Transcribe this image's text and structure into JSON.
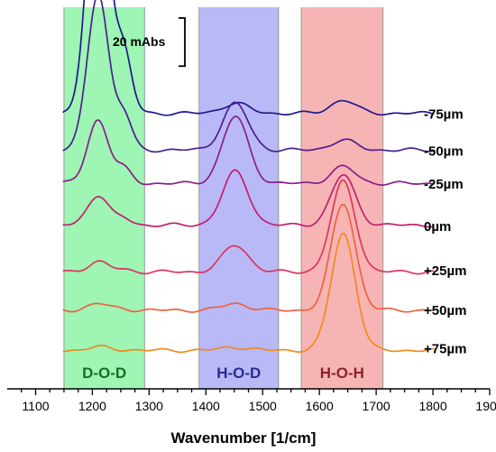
{
  "chart_data": {
    "type": "line",
    "title": "",
    "xlabel": "Wavenumber [1/cm]",
    "ylabel": "",
    "xlim": [
      1050,
      1900
    ],
    "xticks": [
      1100,
      1200,
      1300,
      1400,
      1500,
      1600,
      1700,
      1800,
      1900
    ],
    "grid": false,
    "scale_bar": {
      "label": "20 mAbs",
      "value": 20,
      "unit": "mAbs"
    },
    "bands": [
      {
        "label": "D-O-D",
        "from": 1150,
        "to": 1292,
        "color": "#9ef5b4",
        "text_color": "#1a6b2a"
      },
      {
        "label": "H-O-D",
        "from": 1388,
        "to": 1528,
        "color": "#b9b9f7",
        "text_color": "#2a2a9a"
      },
      {
        "label": "H-O-H",
        "from": 1568,
        "to": 1712,
        "color": "#f7b4b4",
        "text_color": "#8a2424"
      }
    ],
    "series": [
      {
        "name": "-75µm",
        "color": "#1f1a8c",
        "offset": 72,
        "dod": 82,
        "hod": 3,
        "hoh": 4
      },
      {
        "name": "-50µm",
        "color": "#4b1f8f",
        "offset": 61,
        "dod": 47,
        "hod": 14,
        "hoh": 3
      },
      {
        "name": "-25µm",
        "color": "#8a1f8a",
        "offset": 51,
        "dod": 19,
        "hod": 20,
        "hoh": 5
      },
      {
        "name": "0µm",
        "color": "#c02070",
        "offset": 38.5,
        "dod": 9,
        "hod": 16,
        "hoh": 15
      },
      {
        "name": "+25µm",
        "color": "#de3560",
        "offset": 24.5,
        "dod": 3,
        "hod": 8,
        "hoh": 27
      },
      {
        "name": "+50µm",
        "color": "#f06040",
        "offset": 13,
        "dod": 2,
        "hod": 2,
        "hoh": 32
      },
      {
        "name": "+75µm",
        "color": "#f08a20",
        "offset": 1,
        "dod": 1,
        "hod": 1,
        "hoh": 35
      }
    ]
  }
}
